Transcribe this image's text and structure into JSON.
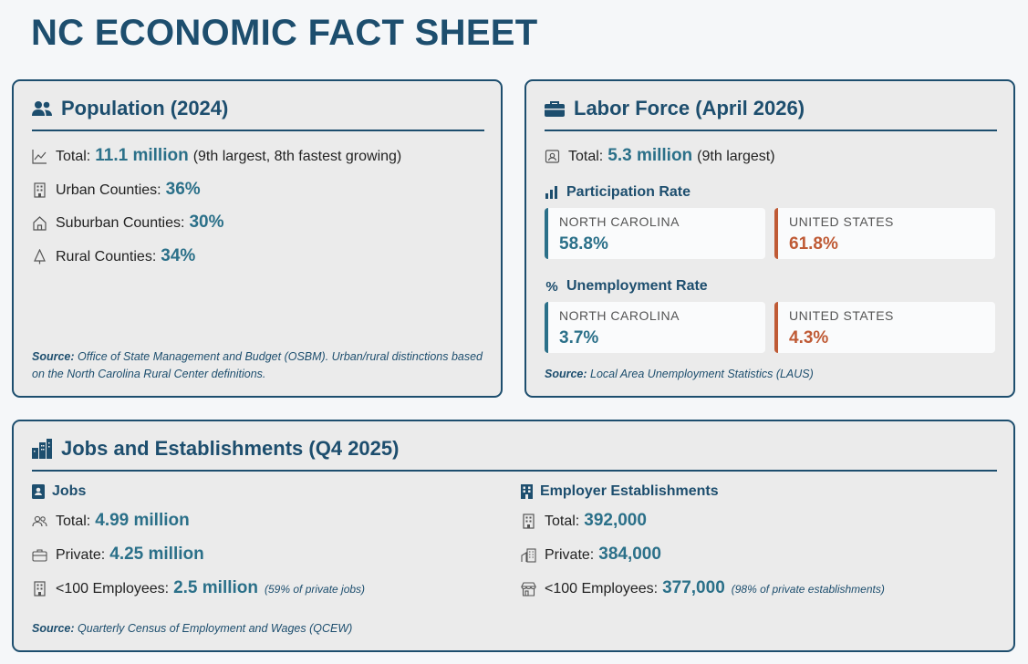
{
  "title": "NC ECONOMIC FACT SHEET",
  "colors": {
    "accent": "#1d4e6e",
    "value": "#2b7089",
    "us": "#bf5a35"
  },
  "population": {
    "heading": "Population (2024)",
    "icon": "users-icon",
    "rows": [
      {
        "icon": "trend-line-icon",
        "label": "Total:",
        "value": "11.1 million",
        "note": "(9th largest, 8th fastest growing)"
      },
      {
        "icon": "building-icon",
        "label": "Urban Counties:",
        "value": "36%"
      },
      {
        "icon": "house-icon",
        "label": "Suburban Counties:",
        "value": "30%"
      },
      {
        "icon": "tree-icon",
        "label": "Rural Counties:",
        "value": "34%"
      }
    ],
    "source_label": "Source:",
    "source_text": "Office of State Management and Budget (OSBM). Urban/rural distinctions based on the North Carolina Rural Center definitions."
  },
  "labor": {
    "heading": "Labor Force (April 2026)",
    "icon": "briefcase-icon",
    "total_label": "Total:",
    "total_value": "5.3 million",
    "total_note": "(9th largest)",
    "participation": {
      "heading": "Participation Rate",
      "nc_label": "NORTH CAROLINA",
      "nc_value": "58.8%",
      "us_label": "UNITED STATES",
      "us_value": "61.8%"
    },
    "unemployment": {
      "heading": "Unemployment Rate",
      "nc_label": "NORTH CAROLINA",
      "nc_value": "3.7%",
      "us_label": "UNITED STATES",
      "us_value": "4.3%"
    },
    "source_label": "Source:",
    "source_text": "Local Area Unemployment Statistics (LAUS)"
  },
  "jobs": {
    "heading": "Jobs and Establishments (Q4 2025)",
    "icon": "city-icon",
    "jobs_col": {
      "heading": "Jobs",
      "rows": [
        {
          "icon": "people-icon",
          "label": "Total:",
          "value": "4.99 million"
        },
        {
          "icon": "briefcase-outline-icon",
          "label": "Private:",
          "value": "4.25 million"
        },
        {
          "icon": "building-icon",
          "label": "<100 Employees:",
          "value": "2.5 million",
          "note": "(59% of private jobs)"
        }
      ]
    },
    "estab_col": {
      "heading": "Employer Establishments",
      "rows": [
        {
          "icon": "building-icon",
          "label": "Total:",
          "value": "392,000"
        },
        {
          "icon": "buildings-icon",
          "label": "Private:",
          "value": "384,000"
        },
        {
          "icon": "shop-icon",
          "label": "<100 Employees:",
          "value": "377,000",
          "note": "(98% of private establishments)"
        }
      ]
    },
    "source_label": "Source:",
    "source_text": "Quarterly Census of Employment and Wages (QCEW)"
  }
}
